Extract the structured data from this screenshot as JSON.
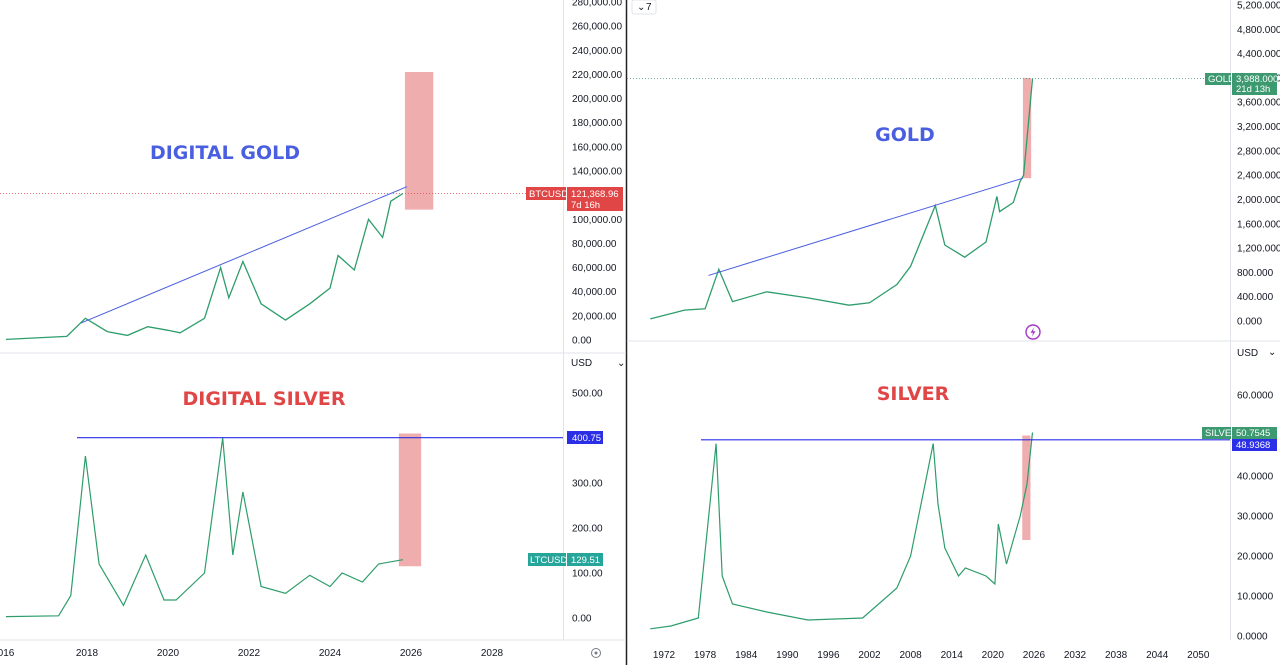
{
  "panels": {
    "btc": {
      "title": "DIGITAL GOLD",
      "title_color": "#4a5fe0",
      "symbol": "BTCUSD",
      "price": "121,368.96",
      "countdown": "7d 16h",
      "badge_color": "#e04646",
      "y_ticks": [
        "280,000.00",
        "260,000.00",
        "240,000.00",
        "220,000.00",
        "200,000.00",
        "180,000.00",
        "160,000.00",
        "140,000.00",
        "120,000.00",
        "100,000.00",
        "80,000.00",
        "60,000.00",
        "40,000.00",
        "20,000.00",
        "0.00"
      ],
      "currency": "USD"
    },
    "ltc": {
      "title": "DIGITAL SILVER",
      "title_color": "#e04646",
      "symbol": "LTCUSD",
      "price": "129.51",
      "level_label": "400.75",
      "badge_color": "#26a69a",
      "level_color": "#2a2ee6",
      "y_ticks": [
        "500.00",
        "400.00",
        "300.00",
        "200.00",
        "100.00",
        "0.00"
      ]
    },
    "gold": {
      "title": "GOLD",
      "title_color": "#4a5fe0",
      "symbol": "GOLD",
      "price": "3,988.000",
      "countdown": "21d 13h",
      "badge_color": "#3d9970",
      "y_ticks": [
        "5,200.000",
        "4,800.000",
        "4,400.000",
        "4,000.000",
        "3,600.000",
        "3,200.000",
        "2,800.000",
        "2,400.000",
        "2,000.000",
        "1,600.000",
        "1,200.000",
        "800.000",
        "400.000",
        "0.000"
      ],
      "currency": "USD",
      "collapse_label": "7"
    },
    "silver": {
      "title": "SILVER",
      "title_color": "#e04646",
      "symbol": "SILVER",
      "price": "50.7545",
      "level_label": "48.9368",
      "badge_color": "#3d9970",
      "level_color": "#2a2ee6",
      "y_ticks": [
        "60.0000",
        "40.0000",
        "30.0000",
        "20.0000",
        "10.0000",
        "0.0000"
      ]
    }
  },
  "x_axis_left": [
    "016",
    "2018",
    "2020",
    "2022",
    "2024",
    "2026",
    "2028"
  ],
  "x_axis_right": [
    "1972",
    "1978",
    "1984",
    "1990",
    "1996",
    "2002",
    "2008",
    "2014",
    "2020",
    "2026",
    "2032",
    "2038",
    "2044",
    "2050"
  ],
  "chart_data": [
    {
      "type": "line",
      "title": "DIGITAL GOLD",
      "series": [
        {
          "name": "BTCUSD",
          "x": [
            2016.0,
            2017.5,
            2017.96,
            2018.5,
            2019.0,
            2019.5,
            2020.0,
            2020.3,
            2020.9,
            2021.3,
            2021.5,
            2021.85,
            2022.3,
            2022.9,
            2023.5,
            2024.0,
            2024.2,
            2024.6,
            2024.95,
            2025.3,
            2025.5,
            2025.8
          ],
          "y": [
            500,
            3000,
            18000,
            7000,
            3800,
            11000,
            8000,
            6000,
            18000,
            60000,
            35000,
            65000,
            30000,
            16500,
            30000,
            43000,
            70000,
            58000,
            100000,
            85000,
            115000,
            121368.96
          ]
        }
      ],
      "ylim": [
        0,
        280000
      ],
      "xlim": [
        2016,
        2029
      ],
      "current_price": 121368.96,
      "highlight_zone": {
        "x": [
          2025.85,
          2026.55
        ],
        "y": [
          108000,
          222000
        ]
      },
      "trendline": {
        "x": [
          2017.85,
          2025.9
        ],
        "y": [
          14000,
          127000
        ]
      }
    },
    {
      "type": "line",
      "title": "DIGITAL SILVER",
      "series": [
        {
          "name": "LTCUSD",
          "x": [
            2016.0,
            2017.3,
            2017.6,
            2017.96,
            2018.3,
            2018.9,
            2019.45,
            2019.9,
            2020.2,
            2020.9,
            2021.35,
            2021.6,
            2021.85,
            2022.3,
            2022.9,
            2023.5,
            2024.0,
            2024.3,
            2024.8,
            2025.2,
            2025.8
          ],
          "y": [
            3,
            5,
            50,
            360,
            120,
            28,
            140,
            40,
            40,
            100,
            400,
            140,
            280,
            70,
            55,
            95,
            70,
            100,
            80,
            120,
            129.51
          ]
        }
      ],
      "ylim": [
        0,
        500
      ],
      "xlim": [
        2016,
        2029
      ],
      "current_price": 129.51,
      "level": 400.75,
      "highlight_zone": {
        "x": [
          2025.7,
          2026.25
        ],
        "y": [
          115,
          410
        ]
      }
    },
    {
      "type": "line",
      "title": "GOLD",
      "series": [
        {
          "name": "GOLD",
          "x": [
            1970,
            1975,
            1978,
            1980.0,
            1982,
            1987,
            1993,
            1999,
            2002,
            2006,
            2008,
            2011.6,
            2013,
            2015.9,
            2019,
            2020.6,
            2021,
            2023,
            2024,
            2024.5,
            2025,
            2025.8
          ],
          "y": [
            35,
            180,
            200,
            850,
            320,
            480,
            380,
            260,
            300,
            600,
            900,
            1900,
            1250,
            1050,
            1300,
            2050,
            1800,
            1950,
            2300,
            2400,
            3000,
            3988
          ]
        }
      ],
      "ylim": [
        0,
        5200
      ],
      "xlim": [
        1970,
        2053
      ],
      "current_price": 3988,
      "highlight_zone": {
        "x": [
          2024.4,
          2025.6
        ],
        "y": [
          2350,
          4000
        ]
      },
      "trendline": {
        "x": [
          1978.5,
          2024.4
        ],
        "y": [
          750,
          2350
        ]
      }
    },
    {
      "type": "line",
      "title": "SILVER",
      "series": [
        {
          "name": "SILVER",
          "x": [
            1970,
            1973,
            1977,
            1979.6,
            1980.5,
            1982,
            1987,
            1993,
            2001,
            2006,
            2008,
            2011.3,
            2012,
            2013,
            2015,
            2016,
            2019,
            2020.3,
            2020.8,
            2022,
            2023,
            2024,
            2025,
            2025.8
          ],
          "y": [
            1.8,
            2.5,
            4.5,
            48,
            15,
            8,
            6,
            4,
            4.5,
            12,
            20,
            48,
            33,
            22,
            15,
            17,
            15,
            13,
            28,
            18,
            24,
            30,
            38,
            50.75
          ]
        }
      ],
      "ylim": [
        0,
        60
      ],
      "xlim": [
        1970,
        2053
      ],
      "current_price": 50.7545,
      "level": 48.9368,
      "highlight_zone": {
        "x": [
          2024.3,
          2025.5
        ],
        "y": [
          24,
          50
        ]
      }
    }
  ]
}
